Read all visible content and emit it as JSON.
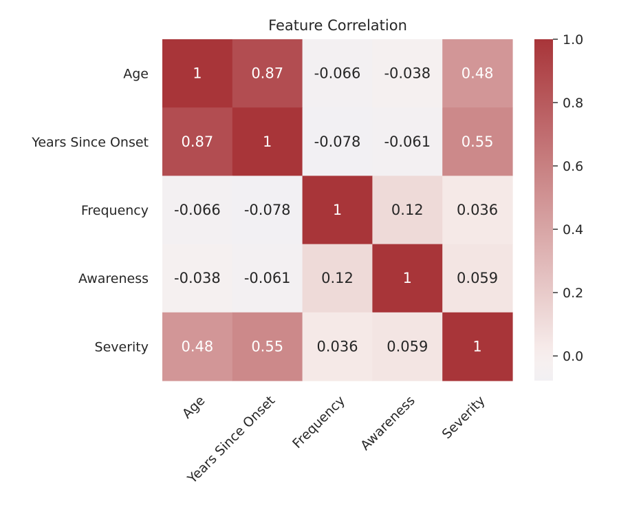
{
  "chart_data": {
    "type": "heatmap",
    "title": "Feature Correlation",
    "xlabel": "",
    "ylabel": "",
    "x_categories": [
      "Age",
      "Years Since Onset",
      "Frequency",
      "Awareness",
      "Severity"
    ],
    "y_categories": [
      "Age",
      "Years Since Onset",
      "Frequency",
      "Awareness",
      "Severity"
    ],
    "values": [
      [
        1,
        0.87,
        -0.066,
        -0.038,
        0.48
      ],
      [
        0.87,
        1,
        -0.078,
        -0.061,
        0.55
      ],
      [
        -0.066,
        -0.078,
        1,
        0.12,
        0.036
      ],
      [
        -0.038,
        -0.061,
        0.12,
        1,
        0.059
      ],
      [
        0.48,
        0.55,
        0.036,
        0.059,
        1
      ]
    ],
    "cell_labels": [
      [
        "1",
        "0.87",
        "-0.066",
        "-0.038",
        "0.48"
      ],
      [
        "0.87",
        "1",
        "-0.078",
        "-0.061",
        "0.55"
      ],
      [
        "-0.066",
        "-0.078",
        "1",
        "0.12",
        "0.036"
      ],
      [
        "-0.038",
        "-0.061",
        "0.12",
        "1",
        "0.059"
      ],
      [
        "0.48",
        "0.55",
        "0.036",
        "0.059",
        "1"
      ]
    ],
    "colorbar": {
      "range": [
        -0.078,
        1
      ],
      "ticks": [
        0.0,
        0.2,
        0.4,
        0.6,
        0.8,
        1.0
      ],
      "tick_labels": [
        "0.0",
        "0.2",
        "0.4",
        "0.6",
        "0.8",
        "1.0"
      ]
    },
    "colormap": {
      "low": "#f2f0f3",
      "mid": "#f8f0ee",
      "high": "#a83539"
    },
    "annotation_colors": {
      "dark": "#262626",
      "light": "#ffffff"
    },
    "grid": false
  }
}
